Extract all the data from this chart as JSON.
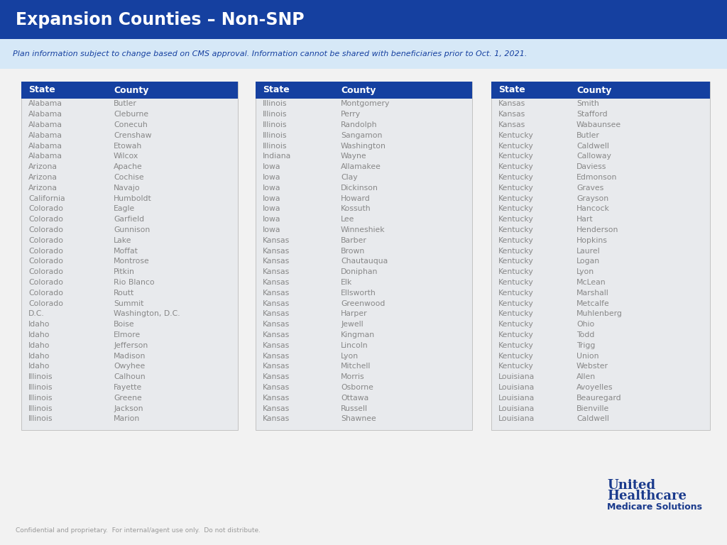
{
  "title": "Expansion Counties – Non-SNP",
  "subtitle": "Plan information subject to change based on CMS approval. Information cannot be shared with beneficiaries prior to Oct. 1, 2021.",
  "footer": "Confidential and proprietary.  For internal/agent use only.  Do not distribute.",
  "logo_line1": "United",
  "logo_line2": "Healthcare",
  "logo_line3": "Medicare Solutions",
  "header_bg": "#1540a0",
  "header_text_color": "#ffffff",
  "subtitle_bg": "#d6e8f7",
  "subtitle_text_color": "#1540a0",
  "body_bg": "#f2f2f2",
  "table_bg": "#e8eaed",
  "table_header_bg": "#1540a0",
  "table_header_text": "#ffffff",
  "table_text_color": "#888888",
  "col1_headers": [
    "State",
    "County"
  ],
  "col1_data": [
    [
      "Alabama",
      "Butler"
    ],
    [
      "Alabama",
      "Cleburne"
    ],
    [
      "Alabama",
      "Conecuh"
    ],
    [
      "Alabama",
      "Crenshaw"
    ],
    [
      "Alabama",
      "Etowah"
    ],
    [
      "Alabama",
      "Wilcox"
    ],
    [
      "Arizona",
      "Apache"
    ],
    [
      "Arizona",
      "Cochise"
    ],
    [
      "Arizona",
      "Navajo"
    ],
    [
      "California",
      "Humboldt"
    ],
    [
      "Colorado",
      "Eagle"
    ],
    [
      "Colorado",
      "Garfield"
    ],
    [
      "Colorado",
      "Gunnison"
    ],
    [
      "Colorado",
      "Lake"
    ],
    [
      "Colorado",
      "Moffat"
    ],
    [
      "Colorado",
      "Montrose"
    ],
    [
      "Colorado",
      "Pitkin"
    ],
    [
      "Colorado",
      "Rio Blanco"
    ],
    [
      "Colorado",
      "Routt"
    ],
    [
      "Colorado",
      "Summit"
    ],
    [
      "D.C.",
      "Washington, D.C."
    ],
    [
      "Idaho",
      "Boise"
    ],
    [
      "Idaho",
      "Elmore"
    ],
    [
      "Idaho",
      "Jefferson"
    ],
    [
      "Idaho",
      "Madison"
    ],
    [
      "Idaho",
      "Owyhee"
    ],
    [
      "Illinois",
      "Calhoun"
    ],
    [
      "Illinois",
      "Fayette"
    ],
    [
      "Illinois",
      "Greene"
    ],
    [
      "Illinois",
      "Jackson"
    ],
    [
      "Illinois",
      "Marion"
    ]
  ],
  "col2_headers": [
    "State",
    "County"
  ],
  "col2_data": [
    [
      "Illinois",
      "Montgomery"
    ],
    [
      "Illinois",
      "Perry"
    ],
    [
      "Illinois",
      "Randolph"
    ],
    [
      "Illinois",
      "Sangamon"
    ],
    [
      "Illinois",
      "Washington"
    ],
    [
      "Indiana",
      "Wayne"
    ],
    [
      "Iowa",
      "Allamakee"
    ],
    [
      "Iowa",
      "Clay"
    ],
    [
      "Iowa",
      "Dickinson"
    ],
    [
      "Iowa",
      "Howard"
    ],
    [
      "Iowa",
      "Kossuth"
    ],
    [
      "Iowa",
      "Lee"
    ],
    [
      "Iowa",
      "Winneshiek"
    ],
    [
      "Kansas",
      "Barber"
    ],
    [
      "Kansas",
      "Brown"
    ],
    [
      "Kansas",
      "Chautauqua"
    ],
    [
      "Kansas",
      "Doniphan"
    ],
    [
      "Kansas",
      "Elk"
    ],
    [
      "Kansas",
      "Ellsworth"
    ],
    [
      "Kansas",
      "Greenwood"
    ],
    [
      "Kansas",
      "Harper"
    ],
    [
      "Kansas",
      "Jewell"
    ],
    [
      "Kansas",
      "Kingman"
    ],
    [
      "Kansas",
      "Lincoln"
    ],
    [
      "Kansas",
      "Lyon"
    ],
    [
      "Kansas",
      "Mitchell"
    ],
    [
      "Kansas",
      "Morris"
    ],
    [
      "Kansas",
      "Osborne"
    ],
    [
      "Kansas",
      "Ottawa"
    ],
    [
      "Kansas",
      "Russell"
    ],
    [
      "Kansas",
      "Shawnee"
    ]
  ],
  "col3_headers": [
    "State",
    "County"
  ],
  "col3_data": [
    [
      "Kansas",
      "Smith"
    ],
    [
      "Kansas",
      "Stafford"
    ],
    [
      "Kansas",
      "Wabaunsee"
    ],
    [
      "Kentucky",
      "Butler"
    ],
    [
      "Kentucky",
      "Caldwell"
    ],
    [
      "Kentucky",
      "Calloway"
    ],
    [
      "Kentucky",
      "Daviess"
    ],
    [
      "Kentucky",
      "Edmonson"
    ],
    [
      "Kentucky",
      "Graves"
    ],
    [
      "Kentucky",
      "Grayson"
    ],
    [
      "Kentucky",
      "Hancock"
    ],
    [
      "Kentucky",
      "Hart"
    ],
    [
      "Kentucky",
      "Henderson"
    ],
    [
      "Kentucky",
      "Hopkins"
    ],
    [
      "Kentucky",
      "Laurel"
    ],
    [
      "Kentucky",
      "Logan"
    ],
    [
      "Kentucky",
      "Lyon"
    ],
    [
      "Kentucky",
      "McLean"
    ],
    [
      "Kentucky",
      "Marshall"
    ],
    [
      "Kentucky",
      "Metcalfe"
    ],
    [
      "Kentucky",
      "Muhlenberg"
    ],
    [
      "Kentucky",
      "Ohio"
    ],
    [
      "Kentucky",
      "Todd"
    ],
    [
      "Kentucky",
      "Trigg"
    ],
    [
      "Kentucky",
      "Union"
    ],
    [
      "Kentucky",
      "Webster"
    ],
    [
      "Louisiana",
      "Allen"
    ],
    [
      "Louisiana",
      "Avoyelles"
    ],
    [
      "Louisiana",
      "Beauregard"
    ],
    [
      "Louisiana",
      "Bienville"
    ],
    [
      "Louisiana",
      "Caldwell"
    ]
  ]
}
